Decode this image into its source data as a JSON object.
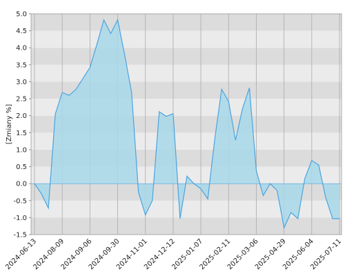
{
  "chart_data": {
    "type": "area",
    "y_label": "[Zmiany %]",
    "categories": [
      "2024-06-13",
      null,
      null,
      null,
      "2024-08-09",
      null,
      null,
      null,
      "2024-09-06",
      null,
      null,
      null,
      "2024-09-30",
      null,
      null,
      null,
      "2024-11-01",
      null,
      null,
      null,
      "2024-12-12",
      null,
      null,
      null,
      "2025-01-07",
      null,
      null,
      null,
      "2025-02-11",
      null,
      null,
      null,
      "2025-03-06",
      null,
      null,
      null,
      "2025-04-29",
      null,
      null,
      null,
      "2025-06-04",
      null,
      null,
      null,
      "2025-07-11"
    ],
    "values": [
      0.0,
      -0.3,
      -0.72,
      2.05,
      2.68,
      2.6,
      2.78,
      3.1,
      3.42,
      4.1,
      4.82,
      4.42,
      4.82,
      3.8,
      2.7,
      -0.25,
      -0.92,
      -0.5,
      2.12,
      1.98,
      2.06,
      -1.03,
      0.22,
      0.0,
      -0.15,
      -0.45,
      1.3,
      2.78,
      2.42,
      1.28,
      2.2,
      2.82,
      0.38,
      -0.35,
      0.0,
      -0.2,
      -1.3,
      -0.85,
      -1.03,
      0.15,
      0.68,
      0.55,
      -0.4,
      -1.03,
      -1.03
    ],
    "color": "#4aa3df",
    "fill_color": "#a8d8ea",
    "ylim": [
      -1.5,
      5.0
    ],
    "yticks": [
      {
        "value": -1.5,
        "label": "-1.5"
      },
      {
        "value": -1,
        "label": "-1.0"
      },
      -0.5,
      {
        "value": 0,
        "label": "0.0"
      },
      0.5,
      {
        "value": 1,
        "label": "1.0"
      },
      1.5,
      {
        "value": 2,
        "label": "2.0"
      },
      2.5,
      {
        "value": 3,
        "label": "3.0"
      },
      3.5,
      {
        "value": 4,
        "label": "4.0"
      },
      4.5,
      {
        "value": 5,
        "label": "5.0"
      }
    ],
    "grid": true
  }
}
